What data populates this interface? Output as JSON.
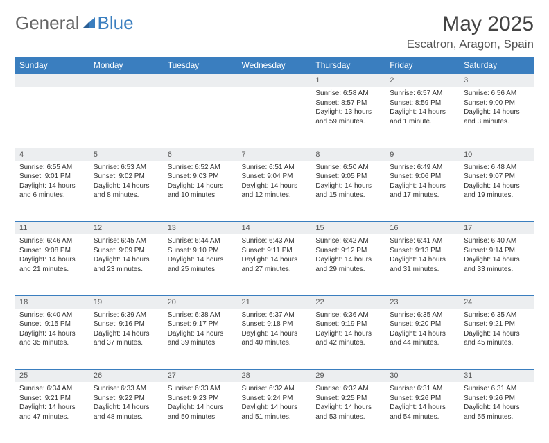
{
  "brand": {
    "part1": "General",
    "part2": "Blue"
  },
  "title": "May 2025",
  "location": "Escatron, Aragon, Spain",
  "colors": {
    "header_bg": "#3a7ebf",
    "header_text": "#ffffff",
    "daynum_bg": "#eceef0",
    "border": "#3a7ebf",
    "text": "#333333",
    "brand_gray": "#666666",
    "brand_blue": "#3a7ebf"
  },
  "day_headers": [
    "Sunday",
    "Monday",
    "Tuesday",
    "Wednesday",
    "Thursday",
    "Friday",
    "Saturday"
  ],
  "weeks": [
    [
      null,
      null,
      null,
      null,
      {
        "n": "1",
        "sunrise": "6:58 AM",
        "sunset": "8:57 PM",
        "daylight": "13 hours and 59 minutes."
      },
      {
        "n": "2",
        "sunrise": "6:57 AM",
        "sunset": "8:59 PM",
        "daylight": "14 hours and 1 minute."
      },
      {
        "n": "3",
        "sunrise": "6:56 AM",
        "sunset": "9:00 PM",
        "daylight": "14 hours and 3 minutes."
      }
    ],
    [
      {
        "n": "4",
        "sunrise": "6:55 AM",
        "sunset": "9:01 PM",
        "daylight": "14 hours and 6 minutes."
      },
      {
        "n": "5",
        "sunrise": "6:53 AM",
        "sunset": "9:02 PM",
        "daylight": "14 hours and 8 minutes."
      },
      {
        "n": "6",
        "sunrise": "6:52 AM",
        "sunset": "9:03 PM",
        "daylight": "14 hours and 10 minutes."
      },
      {
        "n": "7",
        "sunrise": "6:51 AM",
        "sunset": "9:04 PM",
        "daylight": "14 hours and 12 minutes."
      },
      {
        "n": "8",
        "sunrise": "6:50 AM",
        "sunset": "9:05 PM",
        "daylight": "14 hours and 15 minutes."
      },
      {
        "n": "9",
        "sunrise": "6:49 AM",
        "sunset": "9:06 PM",
        "daylight": "14 hours and 17 minutes."
      },
      {
        "n": "10",
        "sunrise": "6:48 AM",
        "sunset": "9:07 PM",
        "daylight": "14 hours and 19 minutes."
      }
    ],
    [
      {
        "n": "11",
        "sunrise": "6:46 AM",
        "sunset": "9:08 PM",
        "daylight": "14 hours and 21 minutes."
      },
      {
        "n": "12",
        "sunrise": "6:45 AM",
        "sunset": "9:09 PM",
        "daylight": "14 hours and 23 minutes."
      },
      {
        "n": "13",
        "sunrise": "6:44 AM",
        "sunset": "9:10 PM",
        "daylight": "14 hours and 25 minutes."
      },
      {
        "n": "14",
        "sunrise": "6:43 AM",
        "sunset": "9:11 PM",
        "daylight": "14 hours and 27 minutes."
      },
      {
        "n": "15",
        "sunrise": "6:42 AM",
        "sunset": "9:12 PM",
        "daylight": "14 hours and 29 minutes."
      },
      {
        "n": "16",
        "sunrise": "6:41 AM",
        "sunset": "9:13 PM",
        "daylight": "14 hours and 31 minutes."
      },
      {
        "n": "17",
        "sunrise": "6:40 AM",
        "sunset": "9:14 PM",
        "daylight": "14 hours and 33 minutes."
      }
    ],
    [
      {
        "n": "18",
        "sunrise": "6:40 AM",
        "sunset": "9:15 PM",
        "daylight": "14 hours and 35 minutes."
      },
      {
        "n": "19",
        "sunrise": "6:39 AM",
        "sunset": "9:16 PM",
        "daylight": "14 hours and 37 minutes."
      },
      {
        "n": "20",
        "sunrise": "6:38 AM",
        "sunset": "9:17 PM",
        "daylight": "14 hours and 39 minutes."
      },
      {
        "n": "21",
        "sunrise": "6:37 AM",
        "sunset": "9:18 PM",
        "daylight": "14 hours and 40 minutes."
      },
      {
        "n": "22",
        "sunrise": "6:36 AM",
        "sunset": "9:19 PM",
        "daylight": "14 hours and 42 minutes."
      },
      {
        "n": "23",
        "sunrise": "6:35 AM",
        "sunset": "9:20 PM",
        "daylight": "14 hours and 44 minutes."
      },
      {
        "n": "24",
        "sunrise": "6:35 AM",
        "sunset": "9:21 PM",
        "daylight": "14 hours and 45 minutes."
      }
    ],
    [
      {
        "n": "25",
        "sunrise": "6:34 AM",
        "sunset": "9:21 PM",
        "daylight": "14 hours and 47 minutes."
      },
      {
        "n": "26",
        "sunrise": "6:33 AM",
        "sunset": "9:22 PM",
        "daylight": "14 hours and 48 minutes."
      },
      {
        "n": "27",
        "sunrise": "6:33 AM",
        "sunset": "9:23 PM",
        "daylight": "14 hours and 50 minutes."
      },
      {
        "n": "28",
        "sunrise": "6:32 AM",
        "sunset": "9:24 PM",
        "daylight": "14 hours and 51 minutes."
      },
      {
        "n": "29",
        "sunrise": "6:32 AM",
        "sunset": "9:25 PM",
        "daylight": "14 hours and 53 minutes."
      },
      {
        "n": "30",
        "sunrise": "6:31 AM",
        "sunset": "9:26 PM",
        "daylight": "14 hours and 54 minutes."
      },
      {
        "n": "31",
        "sunrise": "6:31 AM",
        "sunset": "9:26 PM",
        "daylight": "14 hours and 55 minutes."
      }
    ]
  ],
  "labels": {
    "sunrise": "Sunrise:",
    "sunset": "Sunset:",
    "daylight": "Daylight:"
  }
}
